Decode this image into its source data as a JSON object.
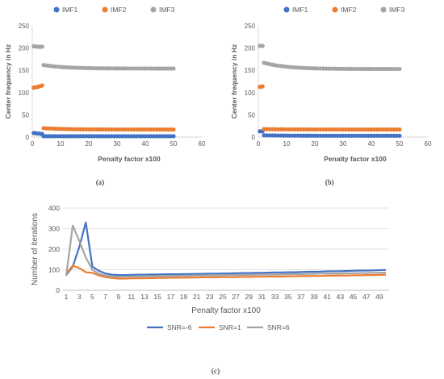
{
  "colors": {
    "imf1": "#4472C4",
    "imf2": "#ED7D31",
    "imf3": "#A5A5A5",
    "axis": "#D9D9D9",
    "text": "#595959"
  },
  "chart_data": [
    {
      "type": "scatter",
      "panel_label": "(a)",
      "xlabel": "Penalty factor  x100",
      "ylabel": "Center frequency in Hz",
      "xlim": [
        0,
        60
      ],
      "ylim": [
        0,
        250
      ],
      "x_ticks": [
        "0",
        "10",
        "20",
        "30",
        "40",
        "50",
        "60"
      ],
      "y_ticks": [
        "0",
        "50",
        "100",
        "150",
        "200",
        "250"
      ],
      "grid": false,
      "legend_position": "top",
      "series": [
        {
          "name": "IMF1",
          "color_key": "imf1",
          "points": [
            [
              0.5,
              9
            ],
            [
              1,
              9
            ],
            [
              1.5,
              8
            ],
            [
              2,
              8
            ],
            [
              2.5,
              8
            ],
            [
              3,
              7
            ],
            [
              3.5,
              7
            ]
          ],
          "tail": {
            "x_start": 4,
            "x_end": 50,
            "step": 1,
            "y_start": 2,
            "y_end": 2
          }
        },
        {
          "name": "IMF2",
          "color_key": "imf2",
          "points": [
            [
              0.5,
              111
            ],
            [
              1,
              112
            ],
            [
              1.5,
              112
            ],
            [
              2,
              113
            ],
            [
              2.5,
              114
            ],
            [
              3,
              115
            ],
            [
              3.5,
              116
            ]
          ],
          "tail": {
            "x_start": 4,
            "x_end": 50,
            "step": 1,
            "y_start": 20,
            "y_end": 17
          }
        },
        {
          "name": "IMF3",
          "color_key": "imf3",
          "points": [
            [
              0.5,
              204
            ],
            [
              1,
              204
            ],
            [
              1.5,
              203
            ],
            [
              2,
              203
            ],
            [
              2.5,
              203
            ],
            [
              3,
              203
            ],
            [
              3.5,
              203
            ]
          ],
          "tail": {
            "x_start": 4,
            "x_end": 50,
            "step": 1,
            "y_start": 162,
            "y_end": 154
          }
        }
      ]
    },
    {
      "type": "scatter",
      "panel_label": "(b)",
      "xlabel": "Penalty factor  x100",
      "ylabel": "Center frequency in Hz",
      "xlim": [
        0,
        60
      ],
      "ylim": [
        0,
        250
      ],
      "x_ticks": [
        "0",
        "10",
        "20",
        "30",
        "40",
        "50",
        "60"
      ],
      "y_ticks": [
        "0",
        "50",
        "100",
        "150",
        "200",
        "250"
      ],
      "grid": false,
      "legend_position": "top",
      "series": [
        {
          "name": "IMF1",
          "color_key": "imf1",
          "points": [
            [
              0.5,
              13
            ],
            [
              1,
              13
            ],
            [
              1.5,
              13
            ]
          ],
          "tail": {
            "x_start": 2,
            "x_end": 50,
            "step": 1,
            "y_start": 4,
            "y_end": 3
          }
        },
        {
          "name": "IMF2",
          "color_key": "imf2",
          "points": [
            [
              0.5,
              113
            ],
            [
              1,
              113
            ],
            [
              1.5,
              114
            ]
          ],
          "tail": {
            "x_start": 2,
            "x_end": 50,
            "step": 1,
            "y_start": 18,
            "y_end": 17
          }
        },
        {
          "name": "IMF3",
          "color_key": "imf3",
          "points": [
            [
              0.5,
              205
            ],
            [
              1,
              205
            ],
            [
              1.5,
              205
            ]
          ],
          "tail": {
            "x_start": 2,
            "x_end": 50,
            "step": 1,
            "y_start": 167,
            "y_end": 153
          }
        }
      ]
    },
    {
      "type": "line",
      "panel_label": "(c)",
      "xlabel": "Penalty factor  x100",
      "ylabel": "Number of iterations",
      "x_tick_labels": [
        "1",
        "3",
        "5",
        "7",
        "9",
        "11",
        "13",
        "15",
        "17",
        "19",
        "21",
        "23",
        "25",
        "27",
        "29",
        "31",
        "33",
        "35",
        "37",
        "39",
        "41",
        "43",
        "45",
        "47",
        "49"
      ],
      "ylim": [
        0,
        400
      ],
      "y_ticks": [
        "0",
        "100",
        "200",
        "300",
        "400"
      ],
      "grid": true,
      "legend_position": "bottom",
      "x": [
        1,
        2,
        3,
        4,
        5,
        6,
        7,
        8,
        9,
        10,
        11,
        12,
        13,
        14,
        15,
        16,
        17,
        18,
        19,
        20,
        21,
        22,
        23,
        24,
        25,
        26,
        27,
        28,
        29,
        30,
        31,
        32,
        33,
        34,
        35,
        36,
        37,
        38,
        39,
        40,
        41,
        42,
        43,
        44,
        45,
        46,
        47,
        48,
        49,
        50
      ],
      "series": [
        {
          "name": "SNR=-6",
          "color_key": "imf1",
          "values": [
            75,
            115,
            210,
            330,
            115,
            95,
            82,
            76,
            74,
            74,
            75,
            76,
            76,
            77,
            77,
            78,
            78,
            78,
            79,
            79,
            80,
            80,
            81,
            81,
            82,
            82,
            83,
            84,
            84,
            85,
            85,
            86,
            87,
            87,
            88,
            88,
            89,
            90,
            90,
            91,
            92,
            93,
            93,
            94,
            95,
            96,
            96,
            97,
            98,
            99
          ]
        },
        {
          "name": "SNR=1",
          "color_key": "imf2",
          "values": [
            80,
            120,
            108,
            88,
            85,
            72,
            64,
            60,
            57,
            57,
            58,
            58,
            59,
            59,
            60,
            60,
            61,
            61,
            61,
            62,
            62,
            63,
            63,
            63,
            64,
            64,
            64,
            65,
            65,
            66,
            66,
            67,
            67,
            67,
            68,
            68,
            69,
            69,
            70,
            70,
            71,
            71,
            72,
            72,
            73,
            73,
            74,
            74,
            75,
            76
          ]
        },
        {
          "name": "SNR=6",
          "color_key": "imf3",
          "values": [
            70,
            315,
            240,
            160,
            100,
            80,
            72,
            68,
            66,
            66,
            67,
            67,
            68,
            68,
            69,
            69,
            70,
            70,
            71,
            71,
            72,
            72,
            73,
            73,
            73,
            74,
            74,
            75,
            75,
            76,
            76,
            77,
            77,
            78,
            78,
            79,
            79,
            80,
            80,
            81,
            81,
            82,
            82,
            83,
            83,
            84,
            84,
            85,
            85,
            86
          ]
        }
      ]
    }
  ]
}
